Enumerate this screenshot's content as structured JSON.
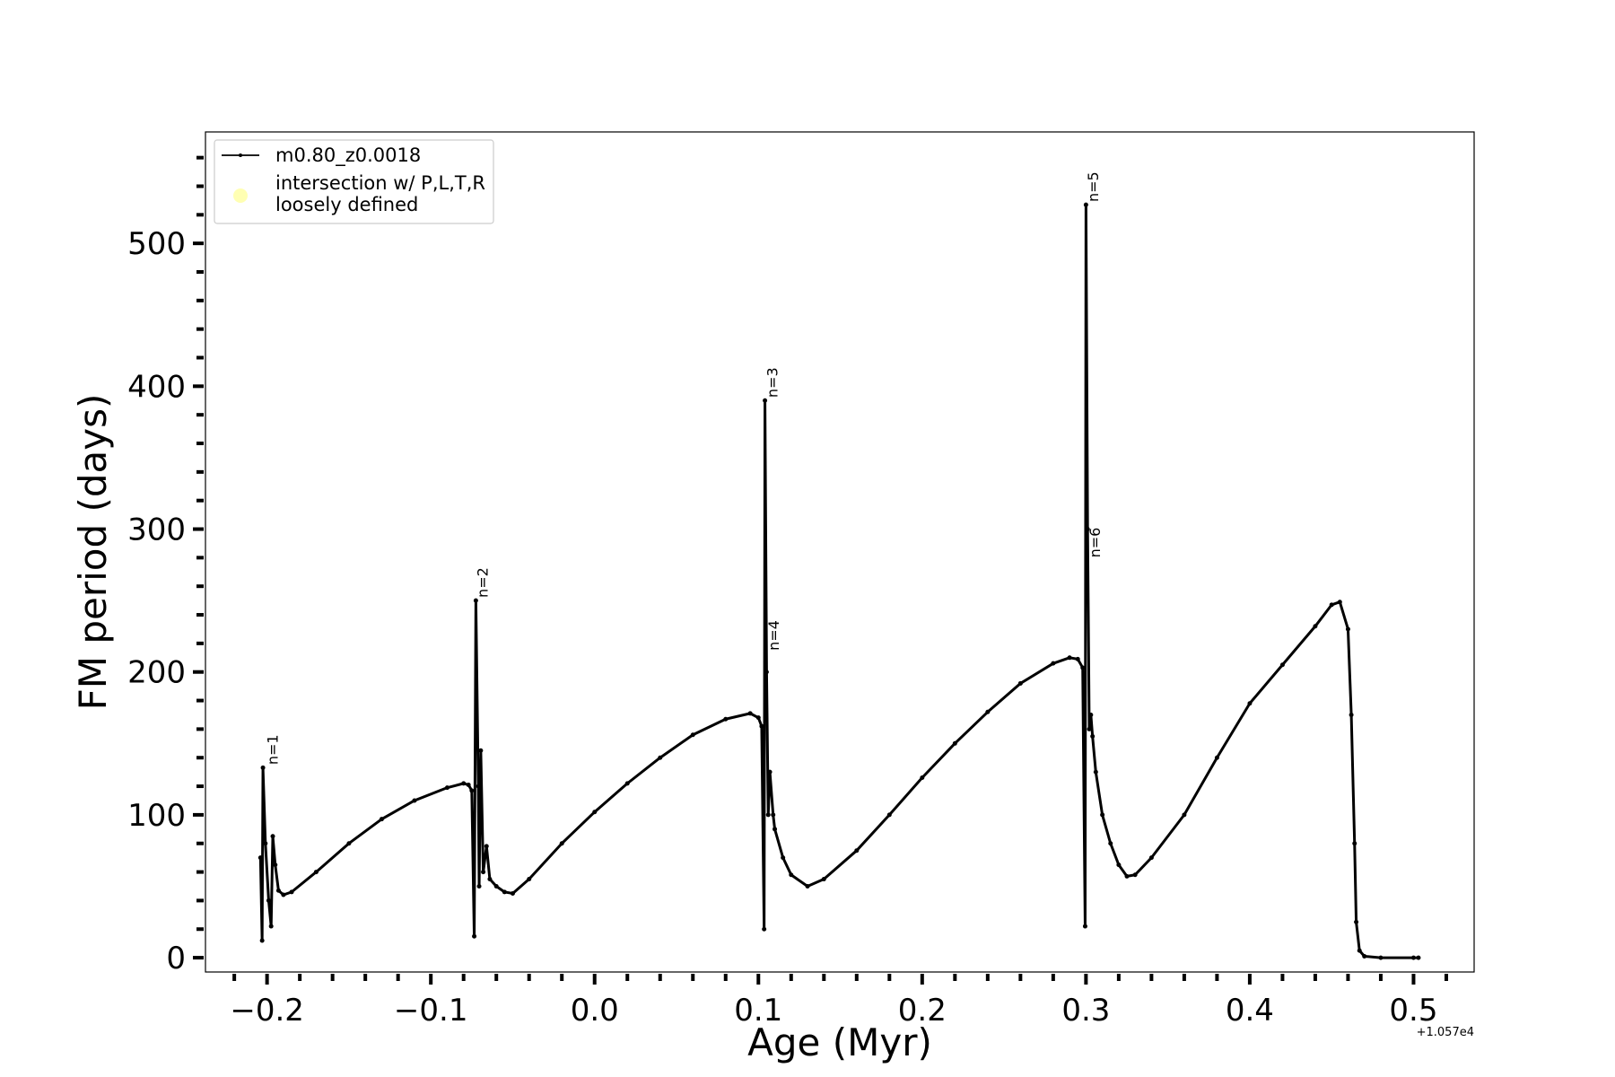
{
  "chart_data": {
    "type": "line",
    "xlabel": "Age (Myr)",
    "ylabel": "FM period (days)",
    "x_offset_label": "+1.057e4",
    "xlim": [
      -0.2376,
      0.537
    ],
    "ylim": [
      -10,
      578
    ],
    "xticks": [
      {
        "value": -0.2,
        "label": "−0.2"
      },
      {
        "value": -0.1,
        "label": "−0.1"
      },
      {
        "value": 0,
        "label": "0.0"
      },
      0.1,
      0.2,
      0.3,
      0.4,
      0.5
    ],
    "xminorticks": [
      -0.22,
      -0.18,
      -0.16,
      -0.14,
      -0.12,
      -0.08,
      -0.06,
      -0.04,
      -0.02,
      0.02,
      0.04,
      0.06,
      0.08,
      0.12,
      0.14,
      0.16,
      0.18,
      0.22,
      0.24,
      0.26,
      0.28,
      0.32,
      0.34,
      0.36,
      0.38,
      0.42,
      0.44,
      0.46,
      0.48,
      0.52
    ],
    "yticks": [
      0,
      100,
      200,
      300,
      400,
      500
    ],
    "yminorticks": [
      20,
      40,
      60,
      80,
      120,
      140,
      160,
      180,
      220,
      240,
      260,
      280,
      320,
      340,
      360,
      380,
      420,
      440,
      460,
      480,
      520,
      540,
      560
    ],
    "legend": "upper left",
    "series": [
      {
        "name": "m0.80_z0.0018",
        "color": "#000000",
        "x": [
          -0.204,
          -0.203,
          -0.2025,
          -0.201,
          -0.199,
          -0.1975,
          -0.1965,
          -0.195,
          -0.193,
          -0.19,
          -0.185,
          -0.17,
          -0.15,
          -0.13,
          -0.11,
          -0.09,
          -0.08,
          -0.077,
          -0.075,
          -0.0735,
          -0.0725,
          -0.071,
          -0.0705,
          -0.0695,
          -0.068,
          -0.066,
          -0.064,
          -0.06,
          -0.055,
          -0.05,
          -0.04,
          -0.02,
          0.0,
          0.02,
          0.04,
          0.06,
          0.08,
          0.095,
          0.1,
          0.102,
          0.1035,
          0.104,
          0.105,
          0.106,
          0.107,
          0.109,
          0.11,
          0.115,
          0.12,
          0.13,
          0.14,
          0.16,
          0.18,
          0.2,
          0.22,
          0.24,
          0.26,
          0.28,
          0.29,
          0.295,
          0.298,
          0.2995,
          0.3,
          0.301,
          0.302,
          0.303,
          0.304,
          0.306,
          0.31,
          0.315,
          0.32,
          0.325,
          0.33,
          0.34,
          0.36,
          0.38,
          0.4,
          0.42,
          0.44,
          0.45,
          0.455,
          0.46,
          0.462,
          0.464,
          0.465,
          0.467,
          0.47,
          0.48,
          0.5,
          0.503
        ],
        "values": [
          70,
          12,
          133,
          80,
          40,
          22,
          85,
          65,
          47,
          44,
          46,
          60,
          80,
          97,
          110,
          119,
          122,
          121,
          117,
          15,
          250,
          120,
          50,
          145,
          60,
          78,
          55,
          50,
          46,
          45,
          55,
          80,
          102,
          122,
          140,
          156,
          167,
          171,
          168,
          162,
          20,
          390,
          200,
          100,
          130,
          100,
          90,
          70,
          58,
          50,
          55,
          75,
          100,
          126,
          150,
          172,
          192,
          206,
          210,
          209,
          203,
          22,
          527,
          300,
          160,
          170,
          155,
          130,
          100,
          80,
          65,
          57,
          58,
          70,
          100,
          140,
          178,
          205,
          232,
          247,
          249,
          230,
          170,
          80,
          25,
          5,
          1,
          0,
          0,
          0
        ]
      },
      {
        "name": "intersection w/ P,L,T,R\nloosely defined",
        "color": "#ffffb3",
        "x": [],
        "values": []
      }
    ],
    "annotations": [
      {
        "text": "n=1",
        "x": -0.2,
        "y": 135
      },
      {
        "text": "n=2",
        "x": -0.072,
        "y": 252
      },
      {
        "text": "n=3",
        "x": 0.105,
        "y": 392
      },
      {
        "text": "n=4",
        "x": 0.106,
        "y": 215
      },
      {
        "text": "n=5",
        "x": 0.301,
        "y": 529
      },
      {
        "text": "n=6",
        "x": 0.302,
        "y": 280
      }
    ]
  }
}
